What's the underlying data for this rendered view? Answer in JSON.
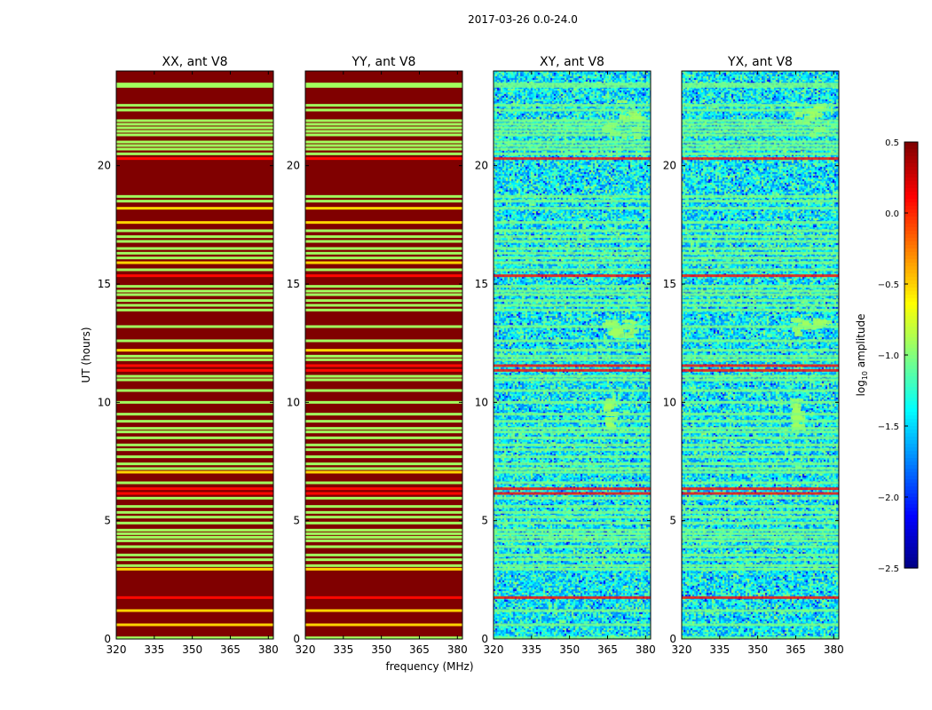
{
  "chart_data": {
    "type": "heatmap",
    "suptitle": "2017-03-26 0.0-24.0",
    "xlabel": "frequency (MHz)",
    "ylabel": "UT (hours)",
    "xlim": [
      320,
      382
    ],
    "ylim": [
      0,
      24
    ],
    "xticks": [
      320,
      335,
      350,
      365,
      380
    ],
    "yticks": [
      0,
      5,
      10,
      15,
      20
    ],
    "panels": [
      {
        "title": "XX, ant V8",
        "style": "flat",
        "base_log10": 0.5
      },
      {
        "title": "YY, ant V8",
        "style": "flat",
        "base_log10": 0.5
      },
      {
        "title": "XY, ant V8",
        "style": "noise",
        "base_log10": -1.4
      },
      {
        "title": "YX, ant V8",
        "style": "noise",
        "base_log10": -1.4
      }
    ],
    "row_features": [
      {
        "ut": 23.45,
        "log10": -0.9
      },
      {
        "ut": 23.35,
        "log10": -0.9
      },
      {
        "ut": 22.55,
        "log10": -0.9
      },
      {
        "ut": 22.35,
        "log10": -0.9
      },
      {
        "ut": 21.9,
        "log10": -0.9
      },
      {
        "ut": 21.75,
        "log10": -0.9
      },
      {
        "ut": 21.6,
        "log10": -0.9
      },
      {
        "ut": 21.45,
        "log10": -0.9
      },
      {
        "ut": 21.3,
        "log10": -0.9
      },
      {
        "ut": 21.0,
        "log10": -0.9
      },
      {
        "ut": 20.85,
        "log10": -0.9
      },
      {
        "ut": 20.7,
        "log10": -0.9
      },
      {
        "ut": 20.5,
        "log10": -0.9
      },
      {
        "ut": 20.3,
        "log10": 0.1
      },
      {
        "ut": 18.7,
        "log10": -0.9
      },
      {
        "ut": 18.5,
        "log10": -0.9
      },
      {
        "ut": 18.2,
        "log10": -0.5
      },
      {
        "ut": 17.6,
        "log10": -0.5
      },
      {
        "ut": 17.25,
        "log10": -0.9
      },
      {
        "ut": 17.0,
        "log10": -0.9
      },
      {
        "ut": 16.8,
        "log10": -0.9
      },
      {
        "ut": 16.5,
        "log10": -0.9
      },
      {
        "ut": 16.3,
        "log10": -0.9
      },
      {
        "ut": 16.1,
        "log10": -0.9
      },
      {
        "ut": 15.9,
        "log10": -0.5
      },
      {
        "ut": 15.6,
        "log10": -0.9
      },
      {
        "ut": 15.35,
        "log10": 0.1
      },
      {
        "ut": 14.9,
        "log10": -0.9
      },
      {
        "ut": 14.7,
        "log10": -0.9
      },
      {
        "ut": 14.55,
        "log10": -0.9
      },
      {
        "ut": 14.3,
        "log10": -0.9
      },
      {
        "ut": 14.1,
        "log10": -0.9
      },
      {
        "ut": 13.9,
        "log10": -0.9
      },
      {
        "ut": 13.2,
        "log10": -0.9
      },
      {
        "ut": 12.6,
        "log10": -0.9
      },
      {
        "ut": 12.2,
        "log10": -0.5
      },
      {
        "ut": 11.95,
        "log10": -0.9
      },
      {
        "ut": 11.8,
        "log10": -0.9
      },
      {
        "ut": 11.55,
        "log10": 0.1
      },
      {
        "ut": 11.35,
        "log10": 0.1
      },
      {
        "ut": 11.1,
        "log10": -0.9
      },
      {
        "ut": 10.95,
        "log10": -0.9
      },
      {
        "ut": 10.5,
        "log10": -0.9
      },
      {
        "ut": 10.0,
        "log10": -0.9
      },
      {
        "ut": 9.5,
        "log10": -0.9
      },
      {
        "ut": 9.2,
        "log10": -0.9
      },
      {
        "ut": 8.9,
        "log10": -0.9
      },
      {
        "ut": 8.75,
        "log10": -0.9
      },
      {
        "ut": 8.5,
        "log10": -0.9
      },
      {
        "ut": 8.2,
        "log10": -0.9
      },
      {
        "ut": 8.0,
        "log10": -0.9
      },
      {
        "ut": 7.7,
        "log10": -0.9
      },
      {
        "ut": 7.4,
        "log10": -0.9
      },
      {
        "ut": 7.2,
        "log10": -0.9
      },
      {
        "ut": 7.05,
        "log10": -0.5
      },
      {
        "ut": 6.6,
        "log10": -0.9
      },
      {
        "ut": 6.35,
        "log10": 0.1
      },
      {
        "ut": 6.15,
        "log10": 0.1
      },
      {
        "ut": 5.95,
        "log10": -0.9
      },
      {
        "ut": 5.6,
        "log10": -0.9
      },
      {
        "ut": 5.35,
        "log10": -0.9
      },
      {
        "ut": 5.15,
        "log10": -0.9
      },
      {
        "ut": 4.9,
        "log10": -0.9
      },
      {
        "ut": 4.6,
        "log10": -0.9
      },
      {
        "ut": 4.45,
        "log10": -0.9
      },
      {
        "ut": 4.3,
        "log10": -0.9
      },
      {
        "ut": 4.15,
        "log10": -0.9
      },
      {
        "ut": 3.9,
        "log10": -0.9
      },
      {
        "ut": 3.55,
        "log10": -0.9
      },
      {
        "ut": 3.35,
        "log10": -0.9
      },
      {
        "ut": 3.1,
        "log10": -0.9
      },
      {
        "ut": 2.95,
        "log10": -0.5
      },
      {
        "ut": 1.75,
        "log10": 0.1
      },
      {
        "ut": 1.2,
        "log10": -0.5
      },
      {
        "ut": 0.6,
        "log10": -0.5
      },
      {
        "ut": 0.05,
        "log10": -0.9
      }
    ],
    "noise_blobs": [
      {
        "ut_range": [
          21.2,
          22.8
        ],
        "freq_range": [
          362,
          380
        ],
        "log10": -0.9
      },
      {
        "ut_range": [
          12.8,
          13.6
        ],
        "freq_range": [
          362,
          379
        ],
        "log10": -0.9
      },
      {
        "ut_range": [
          8.9,
          10.2
        ],
        "freq_range": [
          363,
          367
        ],
        "log10": -0.9
      }
    ],
    "colorbar": {
      "label": "log",
      "label_sub": "10",
      "label_suffix": " amplitude",
      "vmin": -2.5,
      "vmax": 0.5,
      "ticks": [
        {
          "value": 0.5,
          "text": "0.5"
        },
        {
          "value": 0.0,
          "text": "0.0"
        },
        {
          "value": -0.5,
          "text": "−0.5"
        },
        {
          "value": -1.0,
          "text": "−1.0"
        },
        {
          "value": -1.5,
          "text": "−1.5"
        },
        {
          "value": -2.0,
          "text": "−2.0"
        },
        {
          "value": -2.5,
          "text": "−2.5"
        }
      ]
    }
  }
}
